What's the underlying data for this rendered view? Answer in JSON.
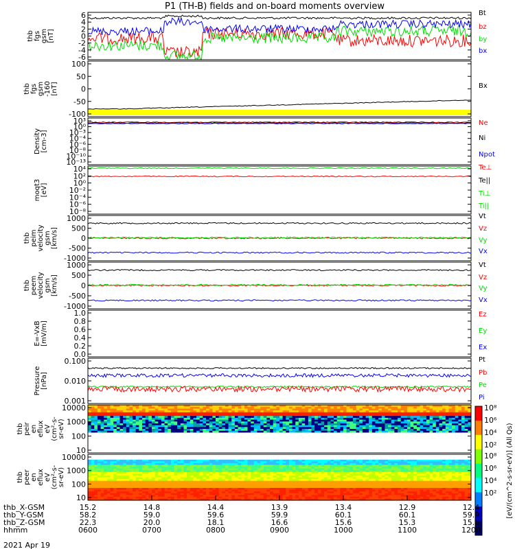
{
  "chart_data": {
    "type": "line",
    "title": "P1 (TH-B) fields and on-board moments overview",
    "x_ticks": [
      "0600",
      "0700",
      "0800",
      "0900",
      "1000",
      "1100",
      "1200"
    ],
    "ephemeris": [
      {
        "label": "thb_X-GSM",
        "values": [
          "15.2",
          "14.8",
          "14.4",
          "13.9",
          "13.4",
          "12.9",
          "12.4"
        ]
      },
      {
        "label": "thb_Y-GSM",
        "values": [
          "58.2",
          "59.0",
          "59.6",
          "59.9",
          "60.1",
          "60.1",
          "59.9"
        ]
      },
      {
        "label": "thb_Z-GSM",
        "values": [
          "22.3",
          "20.0",
          "18.1",
          "16.6",
          "15.6",
          "15.3",
          "15.6"
        ]
      },
      {
        "label": "hhmm",
        "values": [
          "0600",
          "0700",
          "0800",
          "0900",
          "1000",
          "1100",
          "1200"
        ]
      }
    ],
    "date_label": "2021 Apr 19",
    "colorbar_label": "[eV/(cm^2-s-sr-eV)] (All Qs)",
    "colors": {
      "black": "#000000",
      "red": "#ff0000",
      "green": "#00dd00",
      "blue": "#0000ff",
      "yellow": "#ffff00"
    },
    "panels": [
      {
        "ylabel": [
          "thb",
          "fgs",
          "gsm",
          "[nT]"
        ],
        "yticks": [
          "6",
          "4",
          "2",
          "0",
          "-2",
          "-4",
          "-6"
        ],
        "ylim": [
          -6,
          6
        ],
        "scale": "linear",
        "series": [
          {
            "name": "Bt",
            "color": "#000000"
          },
          {
            "name": "bz",
            "color": "#ff0000"
          },
          {
            "name": "by",
            "color": "#00dd00"
          },
          {
            "name": "bx",
            "color": "#0000ff"
          }
        ]
      },
      {
        "ylabel": [
          "thb",
          "fgs",
          "gsm",
          "-160",
          "[nT]"
        ],
        "yticks": [
          "100",
          "50",
          "0",
          "-50",
          "-100"
        ],
        "ylim": [
          -160,
          100
        ],
        "scale": "linear",
        "series": [
          {
            "name": "Bx",
            "color": "#000000"
          }
        ]
      },
      {
        "ylabel": [
          "Density",
          "[cm-3]"
        ],
        "yticks": [
          "10³",
          "10⁰",
          "10⁻³",
          "10⁻⁴",
          "10⁻⁶",
          "10⁻⁸",
          "10⁻¹⁰",
          "10⁻¹³"
        ],
        "scale": "log",
        "series": [
          {
            "name": "Ne",
            "color": "#ff0000"
          },
          {
            "name": "Ni",
            "color": "#000000"
          },
          {
            "name": "Npot",
            "color": "#0000ff"
          }
        ]
      },
      {
        "ylabel": [
          "moqt3",
          "[eV]"
        ],
        "yticks": [
          "10⁴",
          "10²",
          "10⁰",
          "10⁻²",
          "10⁻⁴",
          "10⁻⁶",
          "10⁻⁸"
        ],
        "scale": "log",
        "series": [
          {
            "name": "Te⊥",
            "color": "#ff0000"
          },
          {
            "name": "Te||",
            "color": "#000000"
          },
          {
            "name": "Ti⊥",
            "color": "#00dd00"
          },
          {
            "name": "Ti||",
            "color": "#00dd00"
          }
        ]
      },
      {
        "ylabel": [
          "thb",
          "peim",
          "velocity",
          "gsm",
          "[km/s]"
        ],
        "yticks": [
          "1000",
          "500",
          "0",
          "-500",
          "-1000"
        ],
        "ylim": [
          -1000,
          1000
        ],
        "scale": "linear",
        "series": [
          {
            "name": "Vt",
            "color": "#000000"
          },
          {
            "name": "Vz",
            "color": "#ff0000"
          },
          {
            "name": "Vy",
            "color": "#00dd00"
          },
          {
            "name": "Vx",
            "color": "#0000ff"
          }
        ]
      },
      {
        "ylabel": [
          "thb",
          "peem",
          "velocity",
          "gsm",
          "[km/s]"
        ],
        "yticks": [
          "1000",
          "500",
          "0",
          "-500",
          "-1000"
        ],
        "ylim": [
          -1000,
          1000
        ],
        "scale": "linear",
        "series": [
          {
            "name": "Vt",
            "color": "#000000"
          },
          {
            "name": "Vz",
            "color": "#ff0000"
          },
          {
            "name": "Vy",
            "color": "#00dd00"
          },
          {
            "name": "Vx",
            "color": "#0000ff"
          }
        ]
      },
      {
        "ylabel": [
          "E=-VxB",
          "[mV/m]"
        ],
        "yticks": [
          "1.0",
          "0.8",
          "0.6",
          "0.4",
          "0.2",
          "0.0"
        ],
        "ylim": [
          0,
          1
        ],
        "scale": "linear",
        "series": [
          {
            "name": "Ez",
            "color": "#ff0000"
          },
          {
            "name": "Ey",
            "color": "#00dd00"
          },
          {
            "name": "Ex",
            "color": "#0000ff"
          }
        ]
      },
      {
        "ylabel": [
          "Pressure",
          "[nPa]"
        ],
        "yticks": [
          "0.100",
          "0.010",
          "0.001"
        ],
        "scale": "log",
        "series": [
          {
            "name": "Pt",
            "color": "#000000"
          },
          {
            "name": "Pb",
            "color": "#ff0000"
          },
          {
            "name": "Pe",
            "color": "#00dd00"
          },
          {
            "name": "Pi",
            "color": "#0000ff"
          }
        ]
      },
      {
        "ylabel": [
          "thb",
          "peir",
          "en",
          "eflux",
          "eV",
          "(cm²-s-",
          "sr-eV)"
        ],
        "yticks": [
          "10000",
          "1000",
          "100",
          "10"
        ],
        "scale": "log",
        "type": "heatmap"
      },
      {
        "ylabel": [
          "thb",
          "peer",
          "en",
          "eflux",
          "eV",
          "(cm²-s-",
          "sr-eV)"
        ],
        "yticks": [
          "10000",
          "1000",
          "100",
          "10"
        ],
        "scale": "log",
        "type": "heatmap"
      }
    ],
    "colorbar_ticks": [
      "10⁸",
      "10⁶",
      "10⁴",
      "10²"
    ]
  }
}
